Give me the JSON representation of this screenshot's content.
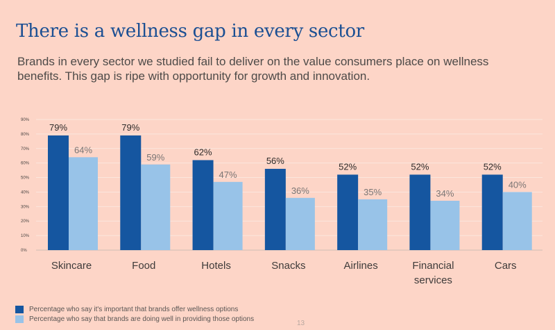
{
  "header": {
    "title": "There is a wellness gap in every sector",
    "subtitle": "Brands in every sector we studied fail to deliver on the value consumers place on wellness benefits. This gap is ripe with opportunity for growth and innovation."
  },
  "colors": {
    "background": "#fdd5c7",
    "important": "#1556a0",
    "doing_well": "#98c3e8",
    "title": "#1b4f93",
    "gridline": "#fbe6dd"
  },
  "chart_data": {
    "type": "bar",
    "title": "There is a wellness gap in every sector",
    "xlabel": "",
    "ylabel": "",
    "ylim": [
      0,
      90
    ],
    "yticks": [
      "0%",
      "10%",
      "20%",
      "30%",
      "40%",
      "50%",
      "60%",
      "70%",
      "80%",
      "90%"
    ],
    "grid": true,
    "legend_position": "bottom-left",
    "categories": [
      "Skincare",
      "Food",
      "Hotels",
      "Snacks",
      "Airlines",
      "Financial services",
      "Cars"
    ],
    "category_lines": [
      [
        "Skincare"
      ],
      [
        "Food"
      ],
      [
        "Hotels"
      ],
      [
        "Snacks"
      ],
      [
        "Airlines"
      ],
      [
        "Financial",
        "services"
      ],
      [
        "Cars"
      ]
    ],
    "series": [
      {
        "name": "Percentage who say it's important that brands offer wellness options",
        "values": [
          79,
          79,
          62,
          56,
          52,
          52,
          52
        ],
        "labels": [
          "79%",
          "79%",
          "62%",
          "56%",
          "52%",
          "52%",
          "52%"
        ]
      },
      {
        "name": "Percentage who say that brands are doing well in providing those options",
        "values": [
          64,
          59,
          47,
          36,
          35,
          34,
          40
        ],
        "labels": [
          "64%",
          "59%",
          "47%",
          "36%",
          "35%",
          "34%",
          "40%"
        ]
      }
    ]
  },
  "legend": {
    "items": [
      {
        "label": "Percentage who say it's important that brands offer wellness options"
      },
      {
        "label": "Percentage who say that brands are doing well in providing those options"
      }
    ]
  },
  "footer": {
    "page_number": "13"
  }
}
